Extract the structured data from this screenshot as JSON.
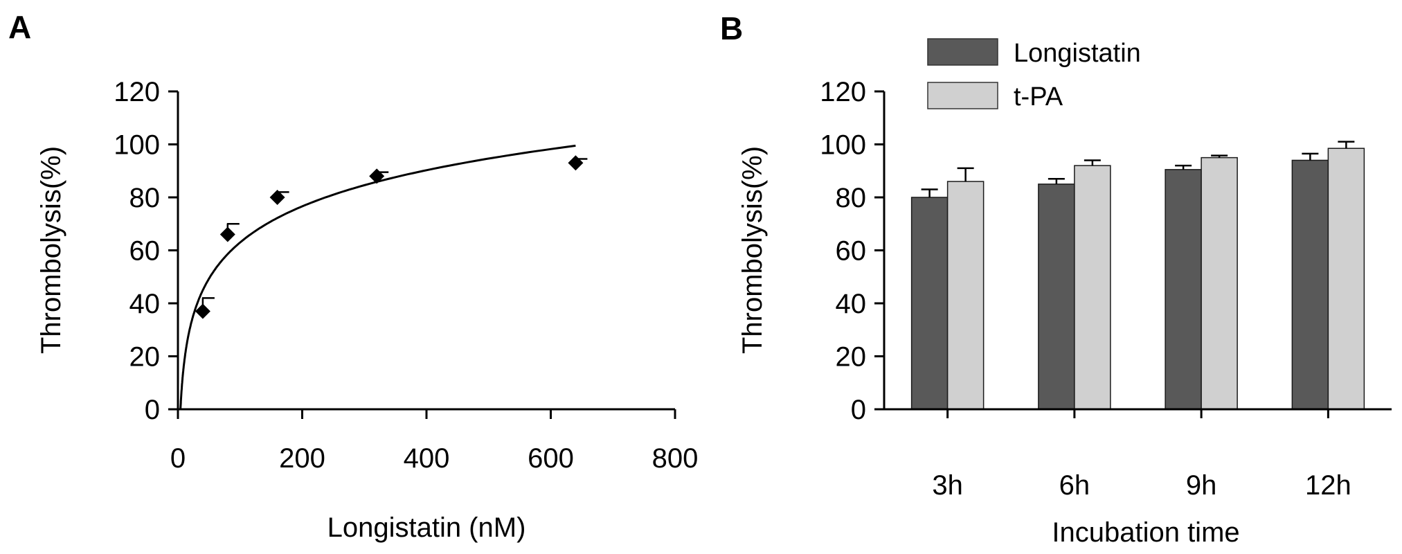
{
  "chart_data": [
    {
      "panel": "A",
      "type": "scatter",
      "xlabel": "Longistatin (nM)",
      "ylabel": "Thrombolysis(%)",
      "xlim": [
        0,
        800
      ],
      "ylim": [
        0,
        120
      ],
      "xticks": [
        0,
        200,
        400,
        600,
        800
      ],
      "yticks": [
        0,
        20,
        40,
        60,
        80,
        100,
        120
      ],
      "points": [
        {
          "x": 40,
          "y": 37,
          "err": 5
        },
        {
          "x": 80,
          "y": 66,
          "err": 4
        },
        {
          "x": 160,
          "y": 80,
          "err": 2
        },
        {
          "x": 320,
          "y": 88,
          "err": 1.5
        },
        {
          "x": 640,
          "y": 93,
          "err": 1.5
        }
      ],
      "fit": {
        "type": "logarithmic",
        "x": [
          5,
          10,
          20,
          40,
          80,
          160,
          320,
          640
        ],
        "y": [
          4,
          18,
          32,
          44,
          58,
          72,
          86,
          100
        ]
      },
      "grid": false
    },
    {
      "panel": "B",
      "type": "bar",
      "xlabel": "Incubation time",
      "ylabel": "Thrombolysis(%)",
      "ylim": [
        0,
        120
      ],
      "yticks": [
        0,
        20,
        40,
        60,
        80,
        100,
        120
      ],
      "categories": [
        "3h",
        "6h",
        "9h",
        "12h"
      ],
      "series": [
        {
          "name": "Longistatin",
          "values": [
            80,
            85,
            90.5,
            94
          ],
          "errors": [
            3,
            2,
            1.5,
            2.5
          ],
          "color": "#595959"
        },
        {
          "name": "t-PA",
          "values": [
            86,
            92,
            95,
            98.5
          ],
          "errors": [
            5,
            2,
            0.8,
            2.5
          ],
          "color": "#d0d0d0"
        }
      ],
      "legend": "top-left",
      "grid": false
    }
  ]
}
